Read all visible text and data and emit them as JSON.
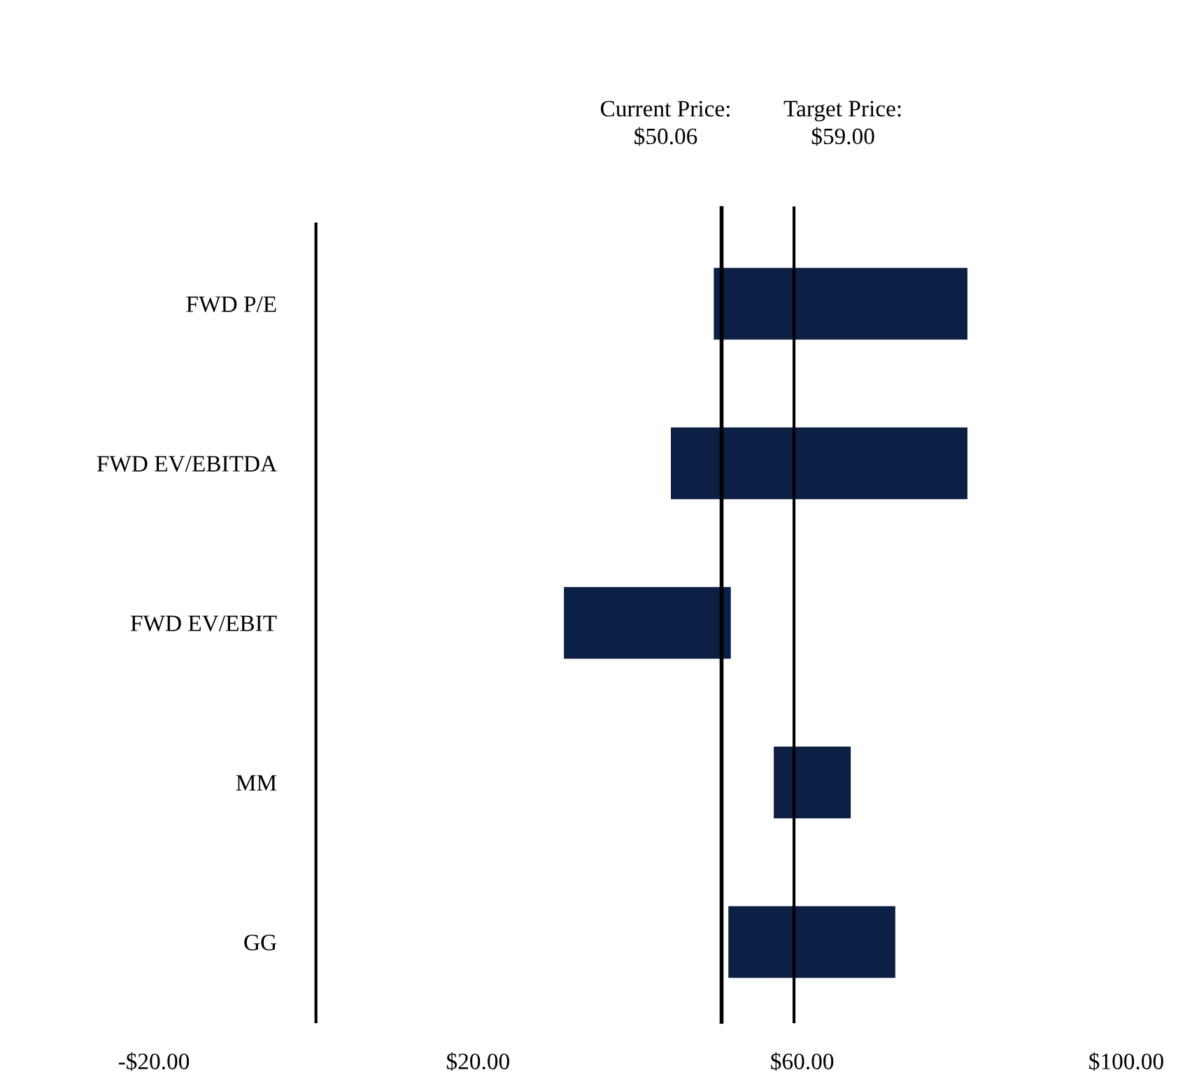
{
  "chart_data": {
    "type": "bar",
    "orientation": "horizontal",
    "categories": [
      "FWD P/E",
      "FWD EV/EBITDA",
      "FWD EV/EBIT",
      "MM",
      "GG"
    ],
    "base": [
      49.1,
      43.8,
      30.6,
      56.5,
      50.9
    ],
    "values": [
      31.3,
      36.6,
      20.6,
      9.5,
      20.6
    ],
    "color": "#0c1f44",
    "xlim": [
      -20,
      100
    ],
    "xticks": [
      {
        "value": -20,
        "label": "-$20.00"
      },
      {
        "value": 20,
        "label": "$20.00"
      },
      {
        "value": 60,
        "label": "$60.00"
      },
      {
        "value": 100,
        "label": "$100.00"
      }
    ],
    "ref_lines": [
      {
        "axis": "x",
        "value": 50.06,
        "label": "Current Price:\n$50.06",
        "color": "#000000"
      },
      {
        "axis": "x",
        "value": 59,
        "label": "Target Price:\n$59.00",
        "color": "#000000"
      }
    ],
    "grid": false,
    "legend": false
  }
}
